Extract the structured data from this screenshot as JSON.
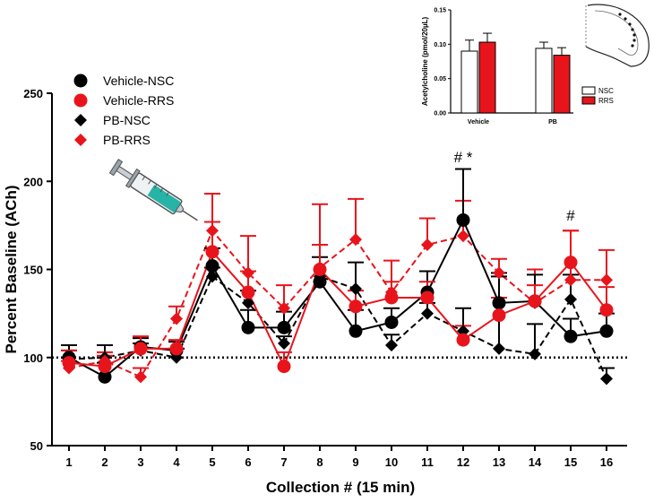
{
  "chart_data": [
    {
      "type": "line",
      "xlabel": "Collection # (15 min)",
      "ylabel": "Percent Baseline (ACh)",
      "x": [
        1,
        2,
        3,
        4,
        5,
        6,
        7,
        8,
        9,
        10,
        11,
        12,
        13,
        14,
        15,
        16
      ],
      "xticks": [
        "1",
        "2",
        "3",
        "4",
        "5",
        "6",
        "7",
        "8",
        "9",
        "10",
        "11",
        "12",
        "13",
        "14",
        "15",
        "16"
      ],
      "ylim": [
        50,
        250
      ],
      "yticks": [
        "50",
        "100",
        "150",
        "200",
        "250"
      ],
      "reference_line": 100,
      "legend_position": "top-left",
      "colors": {
        "black": "#000000",
        "red": "#e8141c"
      },
      "series": [
        {
          "name": "Vehicle-NSC",
          "color": "#000000",
          "marker": "circle",
          "dashed": false,
          "values": [
            100,
            89,
            106,
            104,
            152,
            117,
            117,
            143,
            115,
            120,
            137,
            178,
            131,
            132,
            112,
            115
          ],
          "error": [
            7,
            8,
            5,
            5,
            10,
            10,
            9,
            14,
            12,
            8,
            12,
            29,
            15,
            15,
            10,
            10
          ]
        },
        {
          "name": "Vehicle-RRS",
          "color": "#e8141c",
          "marker": "circle",
          "dashed": false,
          "values": [
            97,
            95,
            105,
            105,
            160,
            137,
            95,
            150,
            129,
            134,
            134,
            110,
            124,
            132,
            154,
            127
          ],
          "error": [
            7,
            6,
            7,
            5,
            17,
            12,
            8,
            14,
            9,
            9,
            9,
            8,
            10,
            9,
            18,
            13
          ]
        },
        {
          "name": "PB-NSC",
          "color": "#000000",
          "marker": "diamond",
          "dashed": true,
          "values": [
            99,
            100,
            104,
            100,
            146,
            131,
            108,
            146,
            139,
            107,
            125,
            115,
            105,
            102,
            133,
            88
          ],
          "error": [
            5,
            7,
            4,
            5,
            5,
            7,
            4,
            18,
            15,
            6,
            6,
            13,
            43,
            17,
            14,
            6
          ]
        },
        {
          "name": "PB-RRS",
          "color": "#e8141c",
          "marker": "diamond",
          "dashed": true,
          "values": [
            94,
            98,
            89,
            122,
            172,
            148,
            128,
            151,
            167,
            137,
            164,
            169,
            148,
            131,
            144,
            144
          ],
          "error": [
            4,
            5,
            5,
            7,
            21,
            21,
            13,
            36,
            23,
            18,
            15,
            20,
            8,
            19,
            28,
            17
          ]
        }
      ],
      "annotations": [
        {
          "x": 12,
          "text": "#  *"
        },
        {
          "x": 15,
          "text": "#"
        }
      ]
    },
    {
      "type": "bar",
      "ylabel": "Acetylcholine (pmol/20µL)",
      "categories": [
        "Vehicle",
        "PB"
      ],
      "ylim": [
        0,
        0.15
      ],
      "yticks": [
        "0.00",
        "0.05",
        "0.10",
        "0.15"
      ],
      "legend_position": "bottom-right",
      "series": [
        {
          "name": "NSC",
          "color": "#ffffff",
          "values": [
            0.09,
            0.094
          ],
          "error": [
            0.016,
            0.009
          ]
        },
        {
          "name": "RRS",
          "color": "#e8141c",
          "values": [
            0.103,
            0.084
          ],
          "error": [
            0.013,
            0.011
          ]
        }
      ]
    }
  ]
}
